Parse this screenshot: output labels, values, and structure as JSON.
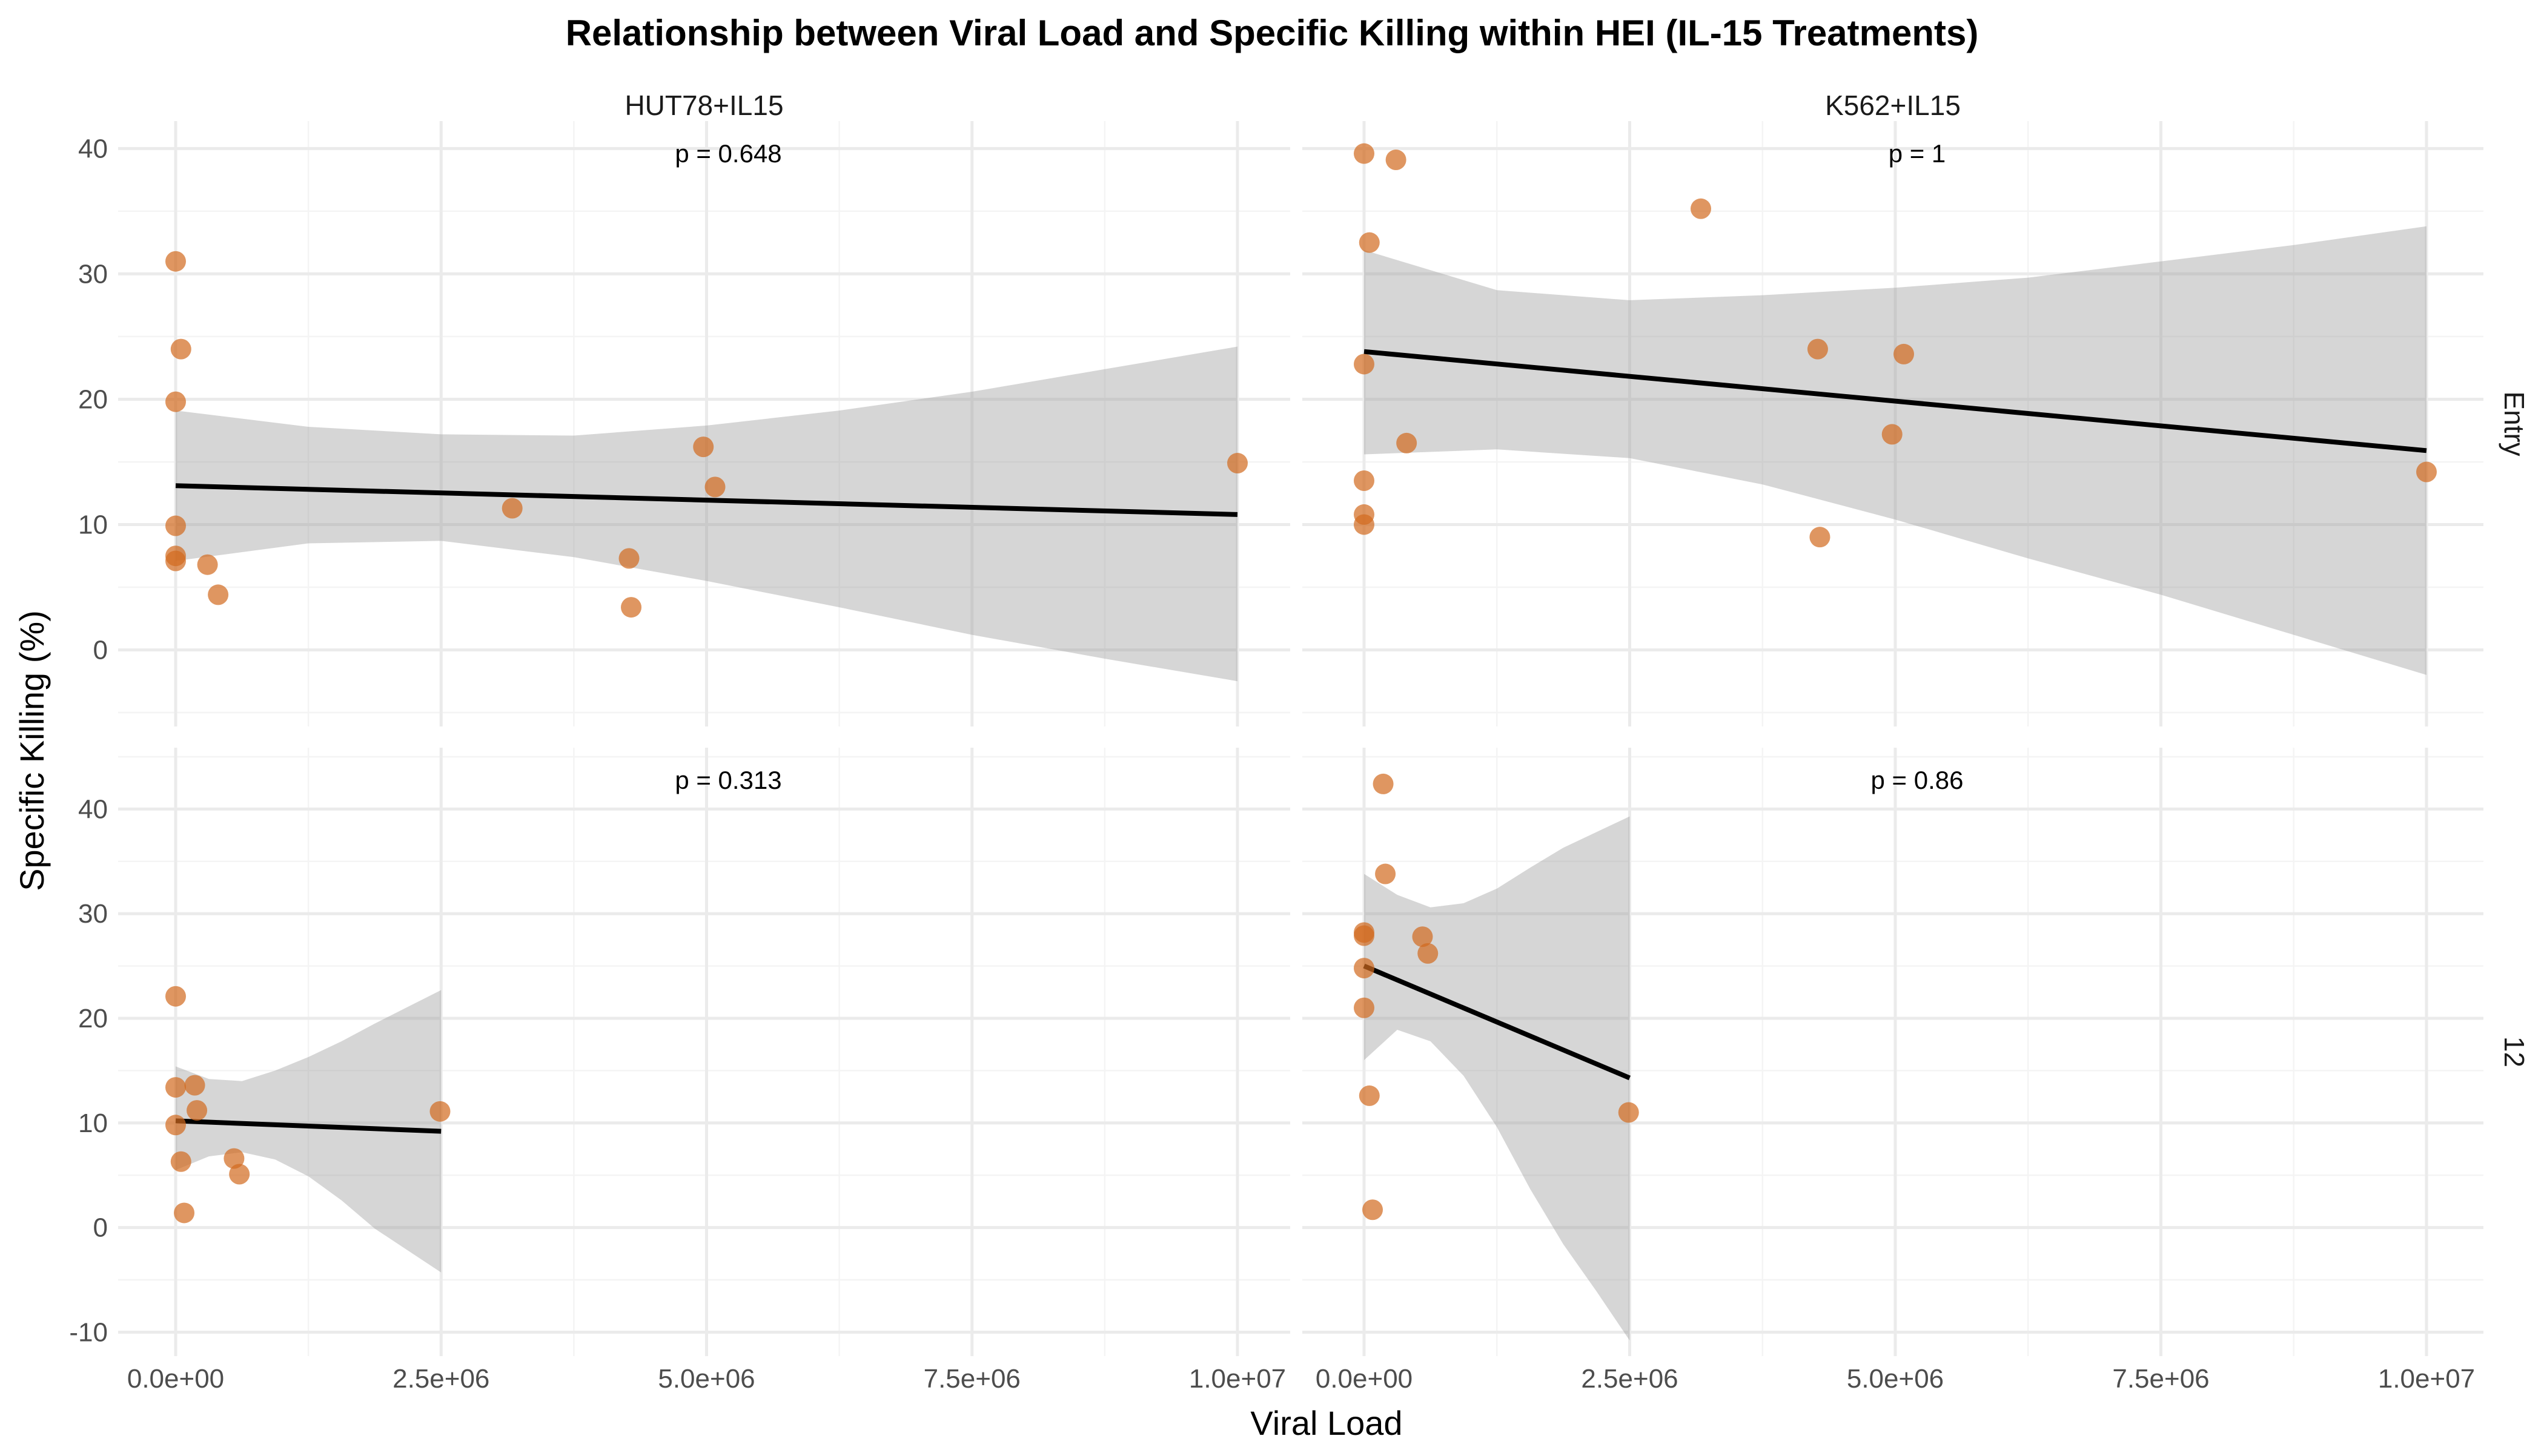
{
  "chart_data": {
    "type": "scatter",
    "title": "Relationship between Viral Load and Specific Killing within HEI (IL-15 Treatments)",
    "xlabel": "Viral Load",
    "ylabel": "Specific Killing (%)",
    "facet_columns": [
      "HUT78+IL15",
      "K562+IL15"
    ],
    "facet_rows": [
      "Entry",
      "12"
    ],
    "xlim": [
      0,
      10000000
    ],
    "x_ticks": [
      0,
      2500000,
      5000000,
      7500000,
      10000000
    ],
    "x_tick_labels": [
      "0.0e+00",
      "2.5e+06",
      "5.0e+06",
      "7.5e+06",
      "1.0e+07"
    ],
    "row_axes": [
      {
        "row": "Entry",
        "ylim": [
          -5,
          42
        ],
        "y_ticks": [
          0,
          10,
          20,
          30,
          40
        ],
        "y_tick_labels": [
          "0",
          "10",
          "20",
          "30",
          "40"
        ]
      },
      {
        "row": "12",
        "ylim": [
          -12,
          45
        ],
        "y_ticks": [
          -10,
          0,
          10,
          20,
          30,
          40
        ],
        "y_tick_labels": [
          "-10",
          "0",
          "10",
          "20",
          "30",
          "40"
        ]
      }
    ],
    "point_color": "#D2691E",
    "ribbon_color": "#999999",
    "line_color": "#000000",
    "grid": true,
    "panels": [
      {
        "col": "HUT78+IL15",
        "row": "Entry",
        "p_label": "p = 0.648",
        "points": [
          [
            0,
            31
          ],
          [
            50000,
            24
          ],
          [
            0,
            19.8
          ],
          [
            0,
            9.9
          ],
          [
            0,
            7.5
          ],
          [
            0,
            7.1
          ],
          [
            300000,
            6.8
          ],
          [
            400000,
            4.4
          ],
          [
            3170000,
            11.3
          ],
          [
            4270000,
            7.3
          ],
          [
            4290000,
            3.4
          ],
          [
            4970000,
            16.2
          ],
          [
            5080000,
            13
          ],
          [
            10000000,
            14.9
          ]
        ],
        "fit": {
          "x": [
            0,
            10000000
          ],
          "y": [
            13.1,
            10.8
          ]
        },
        "ribbon": {
          "x": [
            0,
            1250000,
            2500000,
            3750000,
            5000000,
            6250000,
            7500000,
            8750000,
            10000000
          ],
          "lower": [
            7.1,
            8.5,
            8.7,
            7.4,
            5.5,
            3.4,
            1.2,
            -0.7,
            -2.5
          ],
          "upper": [
            19.1,
            17.8,
            17.2,
            17.1,
            17.9,
            19.1,
            20.6,
            22.4,
            24.2
          ]
        }
      },
      {
        "col": "K562+IL15",
        "row": "Entry",
        "p_label": "p = 1",
        "points": [
          [
            0,
            39.6
          ],
          [
            300000,
            39.1
          ],
          [
            50000,
            32.5
          ],
          [
            3170000,
            35.2
          ],
          [
            0,
            22.8
          ],
          [
            4270000,
            24
          ],
          [
            5080000,
            23.6
          ],
          [
            400000,
            16.5
          ],
          [
            4970000,
            17.2
          ],
          [
            0,
            13.5
          ],
          [
            0,
            10.8
          ],
          [
            0,
            10
          ],
          [
            4290000,
            9
          ],
          [
            10000000,
            14.2
          ]
        ],
        "fit": {
          "x": [
            0,
            10000000
          ],
          "y": [
            23.8,
            15.9
          ]
        },
        "ribbon": {
          "x": [
            0,
            1250000,
            2500000,
            3750000,
            5000000,
            6250000,
            7500000,
            8750000,
            10000000
          ],
          "lower": [
            15.6,
            16,
            15.3,
            13.2,
            10.4,
            7.3,
            4.4,
            1.2,
            -2
          ]
        },
        "ribbon_upper": [
          31.9,
          28.7,
          27.9,
          28.3,
          28.9,
          29.7,
          31,
          32.3,
          33.8
        ]
      },
      {
        "col": "HUT78+IL15",
        "row": "12",
        "p_label": "p = 0.313",
        "points": [
          [
            0,
            22.1
          ],
          [
            0,
            13.4
          ],
          [
            180000,
            13.6
          ],
          [
            200000,
            11.2
          ],
          [
            0,
            9.8
          ],
          [
            50000,
            6.3
          ],
          [
            550000,
            6.6
          ],
          [
            600000,
            5.1
          ],
          [
            80000,
            1.4
          ],
          [
            2490000,
            11.1
          ]
        ],
        "fit": {
          "x": [
            0,
            2500000
          ],
          "y": [
            10.2,
            9.2
          ]
        },
        "ribbon": {
          "x": [
            0,
            312500,
            625000,
            937500,
            1250000,
            1562500,
            1875000,
            2187500,
            2500000
          ],
          "lower": [
            5.5,
            6.8,
            7.2,
            6.5,
            4.9,
            2.6,
            -0.1,
            -2.2,
            -4.3
          ],
          "upper": [
            15.4,
            14.2,
            14,
            15,
            16.3,
            17.8,
            19.5,
            21.1,
            22.7
          ]
        }
      },
      {
        "col": "K562+IL15",
        "row": "12",
        "p_label": "p = 0.86",
        "points": [
          [
            180000,
            42.4
          ],
          [
            200000,
            33.8
          ],
          [
            0,
            28.2
          ],
          [
            0,
            27.9
          ],
          [
            550000,
            27.8
          ],
          [
            600000,
            26.2
          ],
          [
            0,
            24.8
          ],
          [
            0,
            21
          ],
          [
            50000,
            12.6
          ],
          [
            80000,
            1.7
          ],
          [
            2490000,
            11
          ]
        ],
        "fit": {
          "x": [
            0,
            2500000
          ],
          "y": [
            25,
            14.3
          ]
        },
        "ribbon": {
          "x": [
            0,
            312500,
            625000,
            937500,
            1250000,
            1562500,
            1875000,
            2187500,
            2500000
          ],
          "lower": [
            16,
            18.9,
            17.8,
            14.5,
            9.6,
            3.7,
            -1.6,
            -6.1,
            -10.8
          ],
          "upper": [
            33.8,
            31.8,
            30.6,
            31,
            32.4,
            34.4,
            36.3,
            37.8,
            39.3
          ]
        }
      }
    ]
  }
}
